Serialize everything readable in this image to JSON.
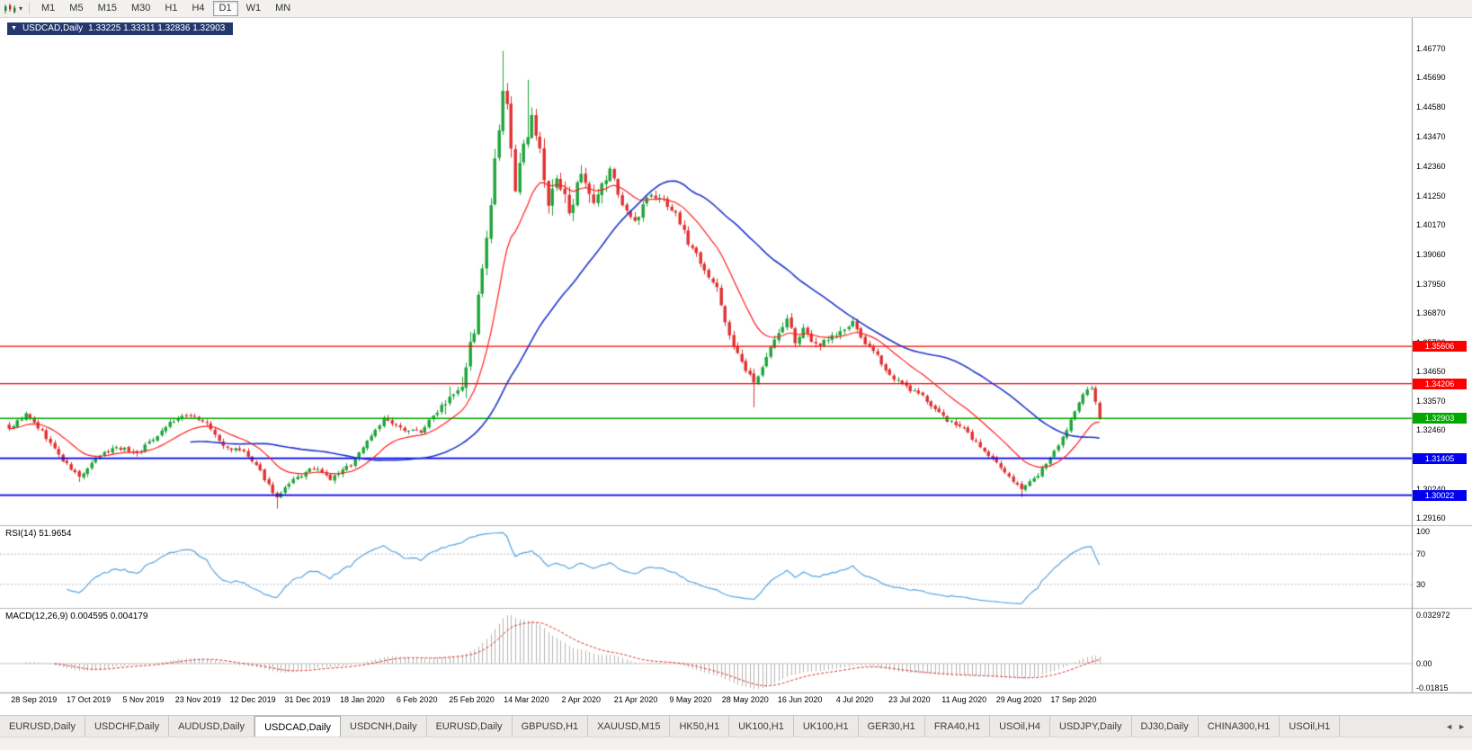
{
  "toolbar": {
    "timeframes": [
      "M1",
      "M5",
      "M15",
      "M30",
      "H1",
      "H4",
      "D1",
      "W1",
      "MN"
    ],
    "selected": "D1"
  },
  "chart_data": {
    "type": "candlestick",
    "title": "USDCAD,Daily",
    "ohlc_text": "1.33225 1.33311 1.32836 1.32903",
    "ohlc": {
      "open": 1.33225,
      "high": 1.33311,
      "low": 1.32836,
      "close": 1.32903
    },
    "y_range": [
      1.289,
      1.4785
    ],
    "y_ticks": [
      "1.46770",
      "1.45690",
      "1.44580",
      "1.43470",
      "1.42360",
      "1.41250",
      "1.40170",
      "1.39060",
      "1.37950",
      "1.36870",
      "1.35760",
      "1.34650",
      "1.33570",
      "1.32460",
      "1.31350",
      "1.30240",
      "1.29160"
    ],
    "x_tick_dates": [
      "28 Sep 2019",
      "17 Oct 2019",
      "5 Nov 2019",
      "23 Nov 2019",
      "12 Dec 2019",
      "31 Dec 2019",
      "18 Jan 2020",
      "6 Feb 2020",
      "25 Feb 2020",
      "14 Mar 2020",
      "2 Apr 2020",
      "21 Apr 2020",
      "9 May 2020",
      "28 May 2020",
      "16 Jun 2020",
      "4 Jul 2020",
      "23 Jul 2020",
      "11 Aug 2020",
      "29 Aug 2020",
      "17 Sep 2020"
    ],
    "x_tick_first_index": 6,
    "x_tick_step": 13.3,
    "num_candles": 266,
    "seed": 9,
    "close_keyframes": [
      [
        0,
        1.3252
      ],
      [
        4,
        1.3305
      ],
      [
        8,
        1.324
      ],
      [
        13,
        1.3132
      ],
      [
        17,
        1.307
      ],
      [
        22,
        1.315
      ],
      [
        26,
        1.3185
      ],
      [
        31,
        1.316
      ],
      [
        35,
        1.3215
      ],
      [
        39,
        1.3275
      ],
      [
        44,
        1.3305
      ],
      [
        48,
        1.327
      ],
      [
        52,
        1.3185
      ],
      [
        57,
        1.3165
      ],
      [
        61,
        1.309
      ],
      [
        65,
        1.2992
      ],
      [
        69,
        1.3058
      ],
      [
        74,
        1.3105
      ],
      [
        78,
        1.3062
      ],
      [
        83,
        1.3118
      ],
      [
        88,
        1.3228
      ],
      [
        91,
        1.3288
      ],
      [
        95,
        1.3252
      ],
      [
        100,
        1.3242
      ],
      [
        104,
        1.3318
      ],
      [
        107,
        1.3388
      ],
      [
        110,
        1.3425
      ],
      [
        113,
        1.3628
      ],
      [
        116,
        1.395
      ],
      [
        118,
        1.4242
      ],
      [
        120,
        1.4495
      ],
      [
        121,
        1.4452
      ],
      [
        123,
        1.4155
      ],
      [
        125,
        1.4298
      ],
      [
        127,
        1.4435
      ],
      [
        129,
        1.4282
      ],
      [
        131,
        1.4092
      ],
      [
        133,
        1.4178
      ],
      [
        136,
        1.4082
      ],
      [
        139,
        1.4188
      ],
      [
        142,
        1.4078
      ],
      [
        146,
        1.4228
      ],
      [
        149,
        1.4092
      ],
      [
        152,
        1.4022
      ],
      [
        155,
        1.4128
      ],
      [
        159,
        1.4108
      ],
      [
        162,
        1.4058
      ],
      [
        165,
        1.3952
      ],
      [
        168,
        1.3882
      ],
      [
        172,
        1.3772
      ],
      [
        175,
        1.3602
      ],
      [
        178,
        1.3492
      ],
      [
        181,
        1.3422
      ],
      [
        184,
        1.3528
      ],
      [
        187,
        1.3608
      ],
      [
        189,
        1.3662
      ],
      [
        191,
        1.3582
      ],
      [
        193,
        1.3618
      ],
      [
        196,
        1.3565
      ],
      [
        199,
        1.3592
      ],
      [
        202,
        1.3612
      ],
      [
        205,
        1.3645
      ],
      [
        208,
        1.3572
      ],
      [
        211,
        1.3522
      ],
      [
        214,
        1.3452
      ],
      [
        218,
        1.3408
      ],
      [
        222,
        1.3372
      ],
      [
        226,
        1.3312
      ],
      [
        228,
        1.3282
      ],
      [
        232,
        1.3252
      ],
      [
        236,
        1.3182
      ],
      [
        240,
        1.3122
      ],
      [
        242,
        1.3082
      ],
      [
        246,
        1.3032
      ],
      [
        249,
        1.3062
      ],
      [
        252,
        1.3122
      ],
      [
        255,
        1.3182
      ],
      [
        258,
        1.3282
      ],
      [
        261,
        1.3388
      ],
      [
        263,
        1.3408
      ],
      [
        265,
        1.32903
      ]
    ],
    "wick_high_overrides": [
      [
        120,
        1.4668
      ],
      [
        126,
        1.456
      ]
    ],
    "wick_low_overrides": [
      [
        17,
        1.3052
      ],
      [
        65,
        1.2952
      ],
      [
        181,
        1.3332
      ],
      [
        246,
        1.2996
      ]
    ],
    "horizontal_lines": [
      {
        "value": 1.35606,
        "label": "1.35606",
        "color": "#ff0000",
        "width": 1.4
      },
      {
        "value": 1.34206,
        "label": "1.34206",
        "color": "#ff0000",
        "width": 1.4
      },
      {
        "value": 1.32903,
        "label": "1.32903",
        "color": "#00a800",
        "width": 1.6
      },
      {
        "value": 1.31405,
        "label": "1.31405",
        "color": "#0000ee",
        "width": 1.8
      },
      {
        "value": 1.30022,
        "label": "1.30022",
        "color": "#0000ee",
        "width": 1.8
      }
    ],
    "moving_averages": [
      {
        "name": "fast-ma",
        "method": "ema",
        "period": 16,
        "color": "#ff2020",
        "width": 1.2
      },
      {
        "name": "slow-ma",
        "method": "sma",
        "period": 45,
        "color": "#2236cc",
        "width": 1.6
      }
    ],
    "indicators": {
      "rsi": {
        "header": "RSI(14) 51.9654",
        "period": 14,
        "value": 51.9654,
        "levels": [
          100,
          70,
          30
        ],
        "range": [
          0,
          100
        ],
        "line_color": "#58a5e0"
      },
      "macd": {
        "header": "MACD(12,26,9) 0.004595 0.004179",
        "fast": 12,
        "slow": 26,
        "signal": 9,
        "value": 0.004595,
        "signal_value": 0.004179,
        "axis_labels": [
          "0.032972",
          "0.00",
          "-0.01815"
        ],
        "histogram_color": "#b5b5b5",
        "signal_color": "#e03030"
      }
    },
    "colors": {
      "up": "#1ca438",
      "down": "#e03030",
      "background": "#ffffff",
      "frame": "#9a9a9a",
      "separator": "#b8b8b8",
      "level_dash": "#bdbdbd"
    }
  },
  "tabs": {
    "items": [
      "EURUSD,Daily",
      "USDCHF,Daily",
      "AUDUSD,Daily",
      "USDCAD,Daily",
      "USDCNH,Daily",
      "EURUSD,Daily",
      "GBPUSD,H1",
      "XAUUSD,M15",
      "HK50,H1",
      "UK100,H1",
      "UK100,H1",
      "GER30,H1",
      "FRA40,H1",
      "USOil,H4",
      "USDJPY,Daily",
      "DJ30,Daily",
      "CHINA300,H1",
      "USOil,H1"
    ],
    "active_index": 3,
    "scroll_left_icon": "◄",
    "scroll_right_icon": "►"
  }
}
